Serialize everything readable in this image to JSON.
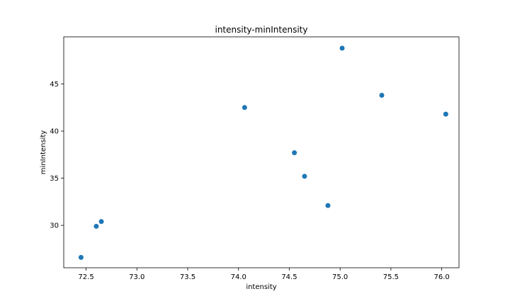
{
  "chart_data": {
    "type": "scatter",
    "title": "intensity-minIntensity",
    "xlabel": "intensity",
    "ylabel": "minIntensity",
    "xlim": [
      72.28,
      76.17
    ],
    "ylim": [
      25.5,
      50.0
    ],
    "xticks": [
      "72.5",
      "73.0",
      "73.5",
      "74.0",
      "74.5",
      "75.0",
      "75.5",
      "76.0"
    ],
    "yticks": [
      "30",
      "35",
      "40",
      "45"
    ],
    "grid": false,
    "marker_color": "#1f77b4",
    "points": [
      {
        "x": 72.45,
        "y": 26.6
      },
      {
        "x": 72.6,
        "y": 29.9
      },
      {
        "x": 72.65,
        "y": 30.4
      },
      {
        "x": 74.06,
        "y": 42.5
      },
      {
        "x": 74.55,
        "y": 37.7
      },
      {
        "x": 74.65,
        "y": 35.2
      },
      {
        "x": 74.88,
        "y": 32.1
      },
      {
        "x": 75.02,
        "y": 48.8
      },
      {
        "x": 75.41,
        "y": 43.8
      },
      {
        "x": 76.04,
        "y": 41.8
      }
    ]
  }
}
